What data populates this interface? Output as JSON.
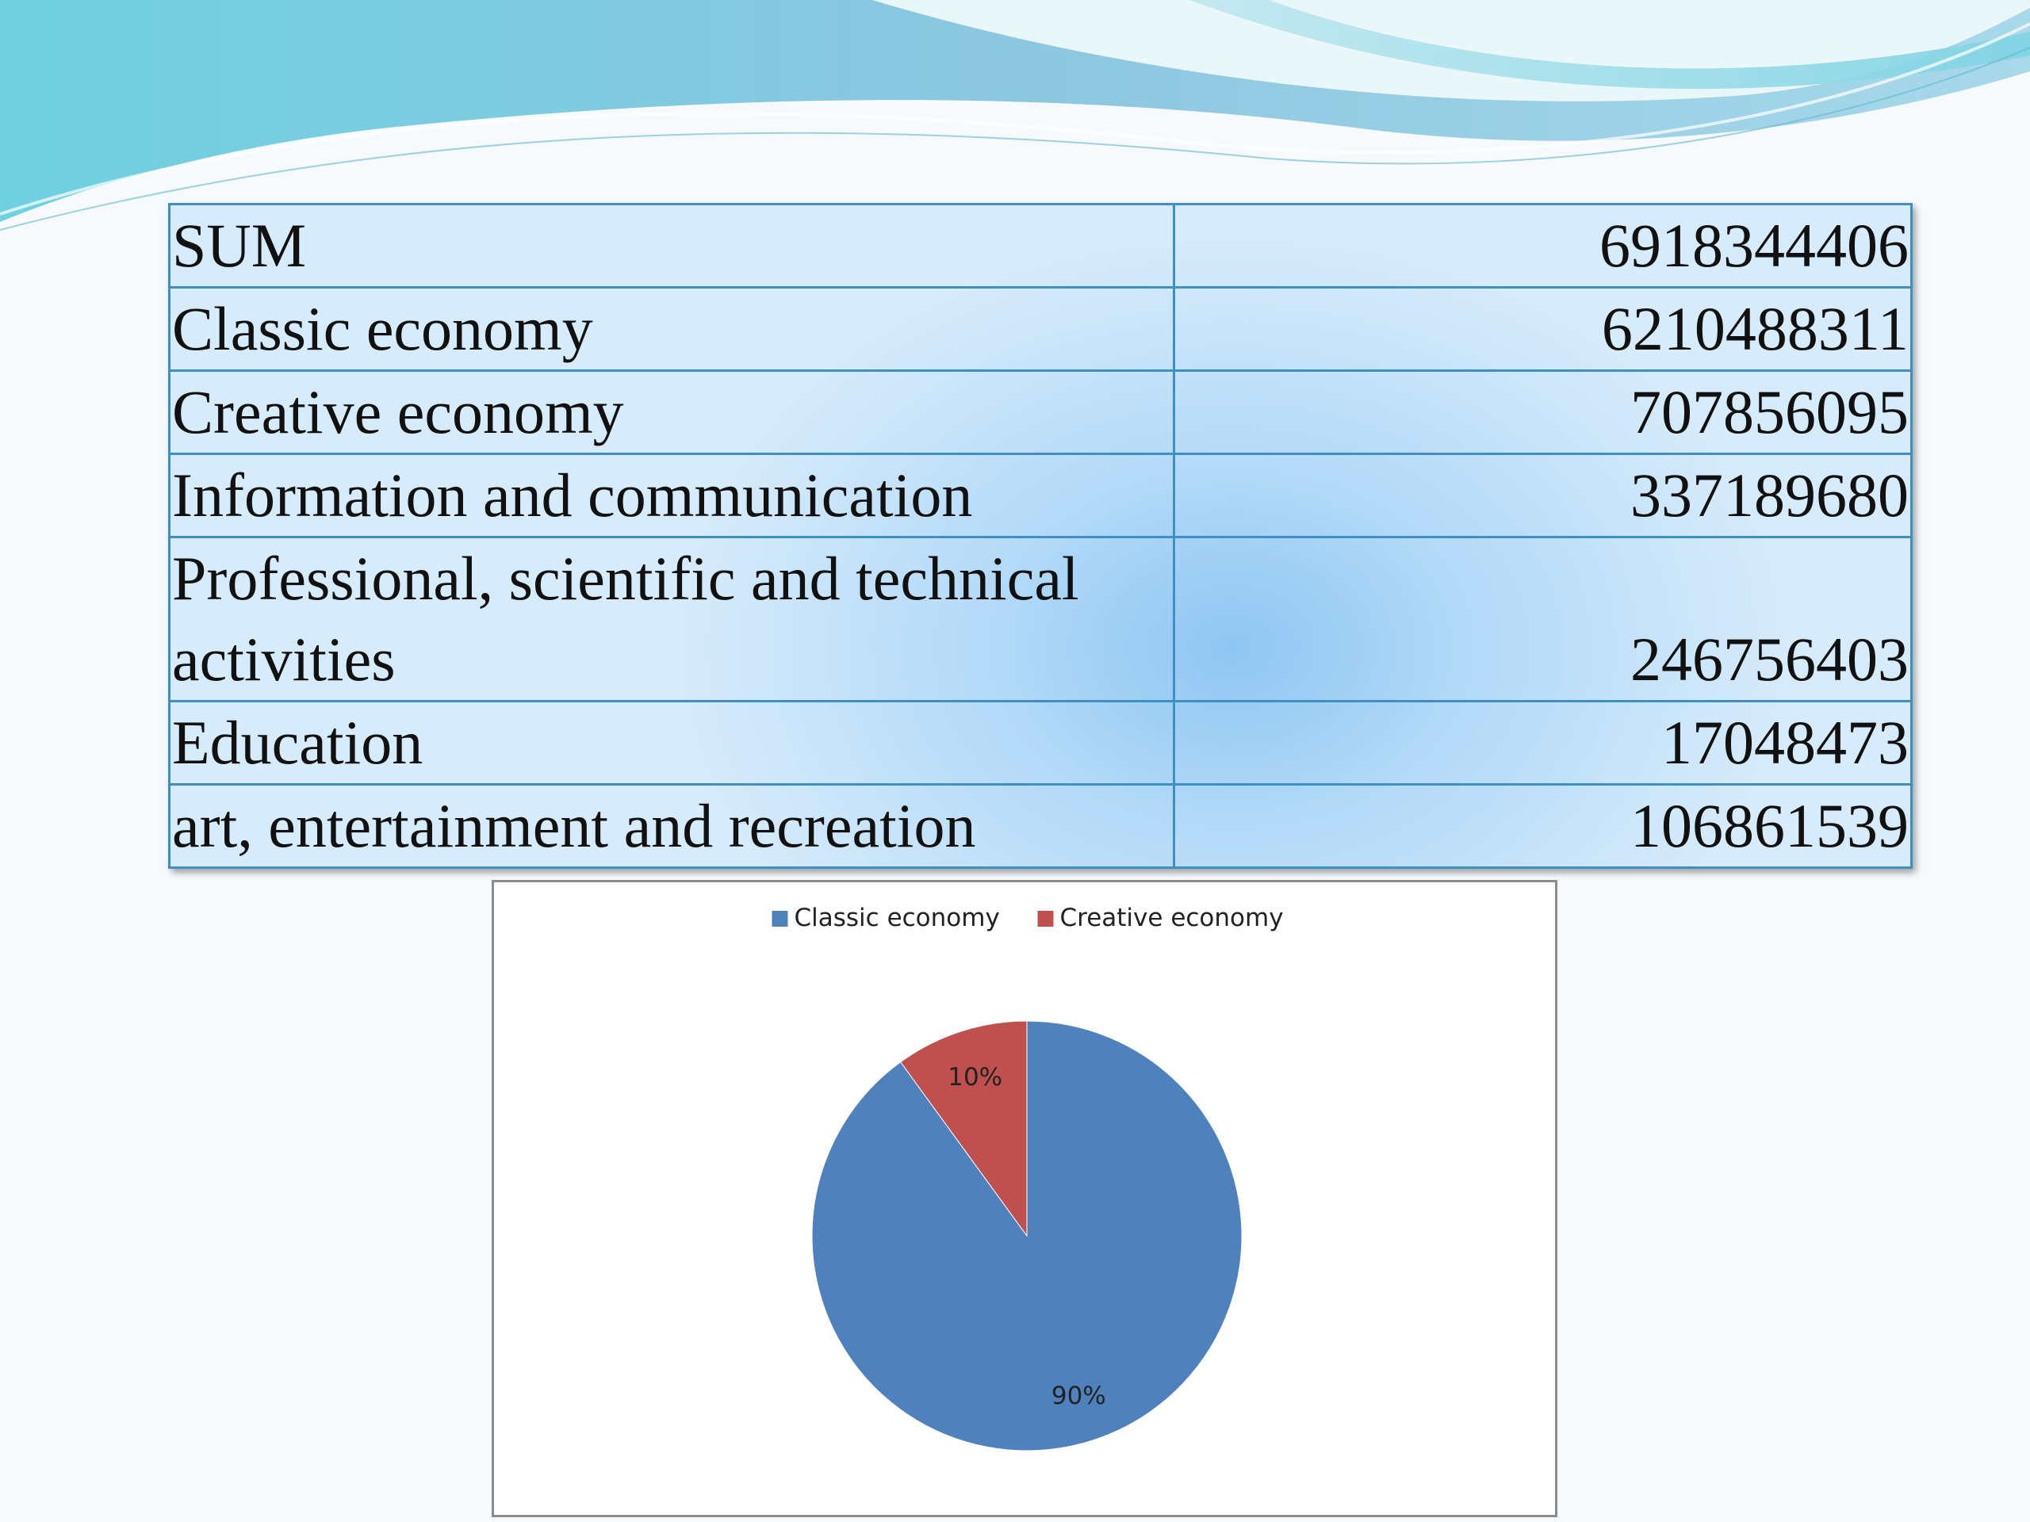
{
  "table": {
    "rows": [
      {
        "label": "SUM",
        "value": "6918344406"
      },
      {
        "label": "Classic economy",
        "value": "6210488311"
      },
      {
        "label": "Creative economy",
        "value": "707856095"
      },
      {
        "label": "Information and communication",
        "value": "337189680"
      },
      {
        "label": "Professional, scientific and technical activities",
        "value": "246756403"
      },
      {
        "label": "Education",
        "value": "17048473"
      },
      {
        "label": "art, entertainment and recreation",
        "value": "106861539"
      }
    ]
  },
  "chart_data": {
    "type": "pie",
    "categories": [
      "Classic economy",
      "Creative economy"
    ],
    "values": [
      90,
      10
    ],
    "data_labels": [
      "90%",
      "10%"
    ],
    "colors": [
      "#4f81bd",
      "#c0504d"
    ],
    "legend_position": "top"
  }
}
